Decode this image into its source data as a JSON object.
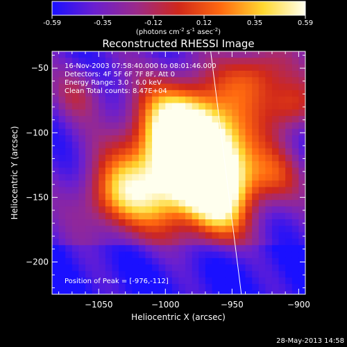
{
  "colorbar": {
    "ticks": [
      "-0.59",
      "-0.35",
      "-0.12",
      "0.12",
      "0.35",
      "0.59"
    ],
    "units_prefix": "(photons cm",
    "units_exp1": "-2",
    "units_mid": " s",
    "units_exp2": "-1",
    "units_mid2": " asec",
    "units_exp3": "-2",
    "units_suffix": ")",
    "colors": [
      "#1a10ff",
      "#6a1fd0",
      "#9b2a8a",
      "#d0281a",
      "#ff6a10",
      "#ffd830",
      "#ffffee"
    ]
  },
  "chart_data": {
    "type": "heatmap",
    "title": "Reconstructed RHESSI Image",
    "xlabel": "Heliocentric X (arcsec)",
    "ylabel": "Heliocentric Y (arcsec)",
    "xlim": [
      -1085,
      -895
    ],
    "ylim": [
      -225,
      -37
    ],
    "xticks": [
      -1050,
      -1000,
      -950,
      -900
    ],
    "yticks": [
      -50,
      -100,
      -150,
      -200
    ],
    "xtick_labels": [
      "−1050",
      "−1000",
      "−950",
      "−900"
    ],
    "ytick_labels": [
      "−50",
      "−100",
      "−150",
      "−200"
    ],
    "zlim": [
      -0.59,
      0.59
    ],
    "peak": [
      -976,
      -112
    ],
    "limb_line": [
      [
        -966,
        -37
      ],
      [
        -943,
        -225
      ]
    ],
    "info_lines": [
      "16-Nov-2003 07:58:40.000 to 08:01:46.000",
      "Detectors: 4F 5F 6F 7F 8F, Att 0",
      "Energy Range: 3.0 - 6.0 keV",
      "Clean     Total counts: 8.47E+04"
    ],
    "peak_label": "Position of Peak = [-976,-112]"
  },
  "footer": {
    "date": "28-May-2013 14:58"
  }
}
